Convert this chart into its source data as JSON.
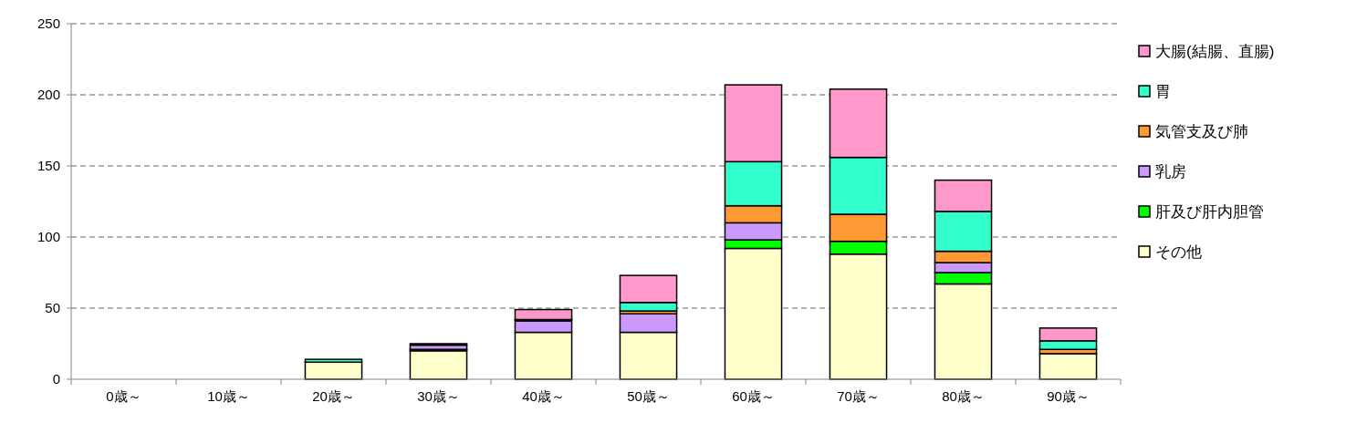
{
  "chart_data": {
    "type": "bar",
    "stacked": true,
    "categories": [
      "0歳～",
      "10歳～",
      "20歳～",
      "30歳～",
      "40歳～",
      "50歳～",
      "60歳～",
      "70歳～",
      "80歳～",
      "90歳～"
    ],
    "series": [
      {
        "name": "その他",
        "color": "#ffffcc",
        "values": [
          0,
          0,
          12,
          20,
          33,
          33,
          92,
          88,
          67,
          18
        ]
      },
      {
        "name": "肝及び肝内胆管",
        "color": "#00ff00",
        "values": [
          0,
          0,
          0,
          1,
          null,
          null,
          6,
          9,
          8,
          0
        ]
      },
      {
        "name": "乳房",
        "color": "#cc99ff",
        "values": [
          0,
          0,
          0,
          3,
          8,
          13,
          12,
          null,
          7,
          0
        ]
      },
      {
        "name": "気管支及び肺",
        "color": "#ff9933",
        "values": [
          0,
          0,
          0,
          null,
          null,
          2,
          12,
          19,
          8,
          3
        ]
      },
      {
        "name": "胃",
        "color": "#33ffcc",
        "values": [
          0,
          0,
          2,
          0,
          1,
          6,
          31,
          40,
          28,
          6
        ]
      },
      {
        "name": "大腸(結腸、直腸)",
        "color": "#ff99cc",
        "values": [
          0,
          0,
          0,
          1,
          7,
          19,
          54,
          48,
          22,
          9
        ]
      }
    ],
    "ylim": [
      0,
      250
    ],
    "yticks": [
      0,
      50,
      100,
      150,
      200,
      250
    ],
    "grid": "y",
    "legend": "right"
  }
}
